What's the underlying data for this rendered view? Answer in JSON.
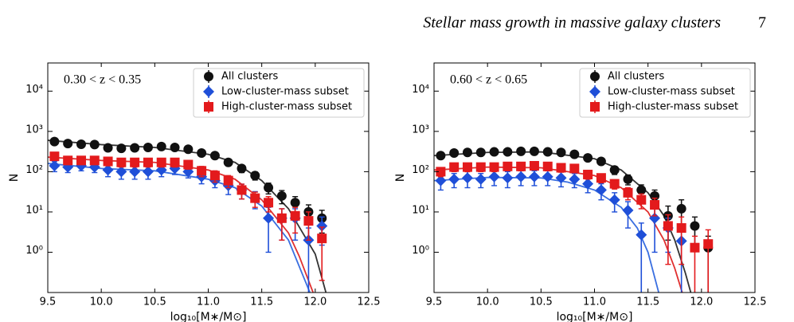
{
  "header": {
    "title": "Stellar mass growth in massive galaxy clusters",
    "page": "7"
  },
  "chart_data": [
    {
      "type": "scatter",
      "annotation": "0.30 < z < 0.35",
      "x_label": "log₁₀[M∗/M⊙]",
      "y_label": "N",
      "y_scale": "log",
      "legend": "upper right",
      "xlim": [
        9.5,
        12.5
      ],
      "ylim": [
        0.1,
        50000
      ],
      "xticks": [
        9.5,
        {
          "value": 10,
          "label": "10.0"
        },
        10.5,
        {
          "value": 11,
          "label": "11.0"
        },
        11.5,
        {
          "value": 12,
          "label": "12.0"
        },
        12.5
      ],
      "yticks": [
        {
          "value": 1,
          "label": "10⁰"
        },
        {
          "value": 10,
          "label": "10¹"
        },
        {
          "value": 100,
          "label": "10²"
        },
        {
          "value": 1000,
          "label": "10³"
        },
        {
          "value": 10000,
          "label": "10⁴"
        }
      ],
      "x": [
        9.5625,
        9.6875,
        9.8125,
        9.9375,
        10.0625,
        10.1875,
        10.3125,
        10.4375,
        10.5625,
        10.6875,
        10.8125,
        10.9375,
        11.0625,
        11.1875,
        11.3125,
        11.4375,
        11.5625,
        11.6875,
        11.8125,
        11.9375,
        12.0625
      ],
      "series": [
        {
          "name": "All clusters",
          "color": "#111111",
          "fit_color": "#333333",
          "marker": "circle",
          "values": [
            560,
            500,
            480,
            470,
            390,
            380,
            390,
            400,
            420,
            400,
            360,
            290,
            250,
            170,
            120,
            80,
            40,
            25,
            17,
            10,
            7
          ],
          "errors": [
            60,
            50,
            45,
            45,
            50,
            50,
            50,
            50,
            50,
            50,
            45,
            40,
            35,
            30,
            25,
            18,
            12,
            9,
            7,
            5,
            4
          ],
          "fit_x": [
            9.5,
            10,
            10.5,
            11,
            11.25,
            11.5,
            11.75,
            12,
            12.1
          ],
          "fit_values": [
            600,
            470,
            400,
            270,
            170,
            60,
            12,
            0.9,
            0.1
          ]
        },
        {
          "name": "Low-cluster-mass subset",
          "color": "#1f4fd8",
          "fit_color": "#3a6fe0",
          "marker": "diamond",
          "values": [
            140,
            130,
            140,
            130,
            110,
            100,
            100,
            100,
            110,
            120,
            100,
            75,
            60,
            45,
            35,
            22,
            7,
            7,
            7,
            2,
            4.5
          ],
          "errors": [
            40,
            35,
            35,
            35,
            35,
            35,
            35,
            35,
            35,
            35,
            30,
            25,
            20,
            18,
            14,
            10,
            6,
            5,
            5,
            2,
            3
          ],
          "fit_x": [
            9.5,
            10,
            10.5,
            11,
            11.25,
            11.5,
            11.75,
            11.95
          ],
          "fit_values": [
            160,
            120,
            105,
            65,
            40,
            14,
            2,
            0.1
          ]
        },
        {
          "name": "High-cluster-mass subset",
          "color": "#e31a1c",
          "fit_color": "#e03030",
          "marker": "square",
          "values": [
            240,
            190,
            190,
            190,
            180,
            170,
            170,
            170,
            170,
            170,
            150,
            105,
            80,
            60,
            35,
            22,
            17,
            7,
            8,
            6,
            2.2
          ],
          "errors": [
            50,
            40,
            40,
            40,
            40,
            40,
            40,
            40,
            40,
            40,
            35,
            30,
            25,
            20,
            14,
            9,
            7,
            5,
            5,
            4,
            2
          ],
          "fit_x": [
            9.5,
            10,
            10.5,
            11,
            11.25,
            11.5,
            11.75,
            11.85,
            11.98
          ],
          "fit_values": [
            230,
            190,
            170,
            110,
            65,
            20,
            3,
            0.8,
            0.1
          ]
        }
      ]
    },
    {
      "type": "scatter",
      "annotation": "0.60 < z < 0.65",
      "x_label": "log₁₀[M∗/M⊙]",
      "y_label": "N",
      "y_scale": "log",
      "legend": "upper right",
      "xlim": [
        9.5,
        12.5
      ],
      "ylim": [
        0.1,
        50000
      ],
      "xticks": [
        9.5,
        {
          "value": 10,
          "label": "10.0"
        },
        10.5,
        {
          "value": 11,
          "label": "11.0"
        },
        11.5,
        {
          "value": 12,
          "label": "12.0"
        },
        12.5
      ],
      "yticks": [
        {
          "value": 1,
          "label": "10⁰"
        },
        {
          "value": 10,
          "label": "10¹"
        },
        {
          "value": 100,
          "label": "10²"
        },
        {
          "value": 1000,
          "label": "10³"
        },
        {
          "value": 10000,
          "label": "10⁴"
        }
      ],
      "x": [
        9.5625,
        9.6875,
        9.8125,
        9.9375,
        10.0625,
        10.1875,
        10.3125,
        10.4375,
        10.5625,
        10.6875,
        10.8125,
        10.9375,
        11.0625,
        11.1875,
        11.3125,
        11.4375,
        11.5625,
        11.6875,
        11.8125,
        11.9375,
        12.0625
      ],
      "series": [
        {
          "name": "All clusters",
          "color": "#111111",
          "fit_color": "#333333",
          "marker": "circle",
          "values": [
            250,
            290,
            300,
            300,
            310,
            310,
            320,
            320,
            310,
            300,
            270,
            220,
            180,
            110,
            65,
            35,
            25,
            8,
            12,
            4.5,
            1.3
          ],
          "errors": [
            40,
            45,
            45,
            45,
            45,
            45,
            45,
            45,
            45,
            45,
            40,
            35,
            30,
            25,
            18,
            12,
            10,
            6,
            8,
            3,
            1.2
          ],
          "fit_x": [
            9.5,
            10,
            10.5,
            11,
            11.25,
            11.5,
            11.65,
            11.75,
            11.85,
            11.9
          ],
          "fit_values": [
            250,
            300,
            310,
            210,
            110,
            30,
            8,
            2,
            0.3,
            0.1
          ]
        },
        {
          "name": "Low-cluster-mass subset",
          "color": "#1f4fd8",
          "fit_color": "#3a6fe0",
          "marker": "diamond",
          "values": [
            60,
            65,
            70,
            65,
            75,
            70,
            75,
            75,
            75,
            70,
            65,
            50,
            35,
            20,
            11,
            2.7,
            7,
            4,
            1.9,
            null,
            null
          ],
          "errors": [
            25,
            25,
            30,
            25,
            30,
            30,
            30,
            30,
            30,
            28,
            25,
            20,
            15,
            10,
            7,
            2.6,
            6,
            3,
            1.8,
            null,
            null
          ],
          "fit_x": [
            9.5,
            10,
            10.5,
            10.75,
            11,
            11.25,
            11.4,
            11.5,
            11.6
          ],
          "fit_values": [
            60,
            72,
            70,
            55,
            35,
            13,
            4,
            1,
            0.1
          ]
        },
        {
          "name": "High-cluster-mass subset",
          "color": "#e31a1c",
          "fit_color": "#e03030",
          "marker": "square",
          "values": [
            100,
            130,
            130,
            130,
            130,
            135,
            135,
            140,
            135,
            125,
            120,
            85,
            70,
            50,
            30,
            20,
            15,
            4.5,
            4,
            1.3,
            1.6
          ],
          "errors": [
            25,
            30,
            30,
            30,
            30,
            30,
            30,
            30,
            30,
            28,
            26,
            20,
            17,
            13,
            10,
            8,
            7,
            4,
            3.5,
            1.2,
            2
          ],
          "fit_x": [
            9.5,
            10,
            10.5,
            11,
            11.25,
            11.5,
            11.65,
            11.75,
            11.82
          ],
          "fit_values": [
            110,
            130,
            125,
            80,
            40,
            10,
            2,
            0.4,
            0.1
          ]
        }
      ]
    }
  ]
}
